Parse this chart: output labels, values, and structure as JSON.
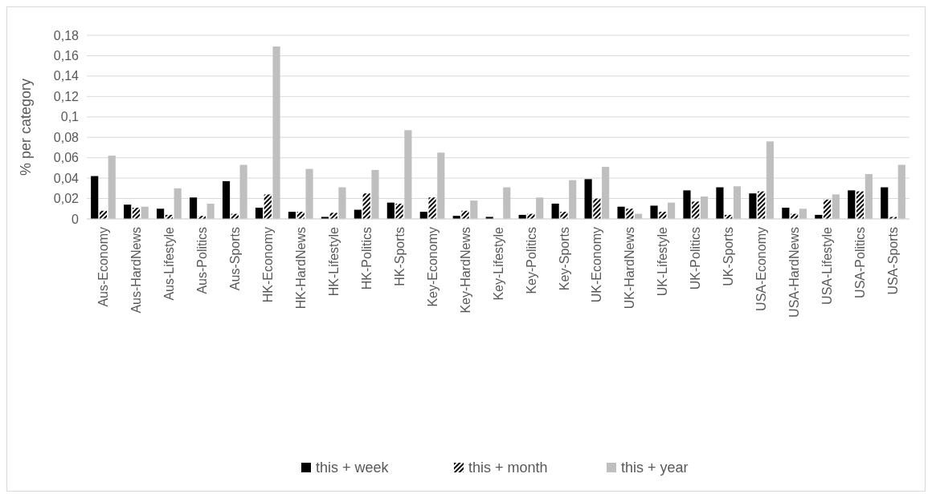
{
  "chart_data": {
    "type": "bar",
    "ylabel": "% per category",
    "categories": [
      "Aus-Economy",
      "Aus-HardNews",
      "Aus-Lifestyle",
      "Aus-Politics",
      "Aus-Sports",
      "HK-Economy",
      "HK-HardNews",
      "HK-Lifestyle",
      "HK-Politics",
      "HK-Sports",
      "Key-Economy",
      "Key-HardNews",
      "Key-Lifestyle",
      "Key-Politics",
      "Key-Sports",
      "UK-Economy",
      "UK-HardNews",
      "UK-Lifestyle",
      "UK-Politics",
      "UK-Sports",
      "USA-Economy",
      "USA-HardNews",
      "USA-Lifestyle",
      "USA-Politics",
      "USA-Sports"
    ],
    "series": [
      {
        "name": "this + week",
        "color": "#000000",
        "values": [
          0.042,
          0.014,
          0.01,
          0.021,
          0.037,
          0.011,
          0.007,
          0.002,
          0.009,
          0.016,
          0.007,
          0.003,
          0.002,
          0.004,
          0.015,
          0.039,
          0.012,
          0.013,
          0.028,
          0.031,
          0.025,
          0.011,
          0.004,
          0.028,
          0.031
        ]
      },
      {
        "name": "this + month",
        "color": "#000000",
        "values": [
          0.008,
          0.011,
          0.004,
          0.003,
          0.005,
          0.024,
          0.007,
          0.006,
          0.025,
          0.015,
          0.021,
          0.008,
          0,
          0.005,
          0.007,
          0.02,
          0.01,
          0.007,
          0.017,
          0.004,
          0.027,
          0.005,
          0.019,
          0.027,
          0.002
        ]
      },
      {
        "name": "this + year",
        "color": "#bfbfbf",
        "values": [
          0.062,
          0.012,
          0.03,
          0.015,
          0.053,
          0.169,
          0.049,
          0.031,
          0.048,
          0.087,
          0.065,
          0.018,
          0.031,
          0.021,
          0.038,
          0.051,
          0.005,
          0.016,
          0.022,
          0.032,
          0.076,
          0.01,
          0.024,
          0.044,
          0.053
        ]
      }
    ],
    "ylim": [
      0,
      0.18
    ],
    "yticks": [
      0,
      {
        "value": 0.02,
        "label": "0,02"
      },
      {
        "value": 0.04,
        "label": "0,04"
      },
      {
        "value": 0.06,
        "label": "0,06"
      },
      {
        "value": 0.08,
        "label": "0,08"
      },
      {
        "value": 0.1,
        "label": "0,1"
      },
      {
        "value": 0.12,
        "label": "0,12"
      },
      {
        "value": 0.14,
        "label": "0,14"
      },
      {
        "value": 0.16,
        "label": "0,16"
      },
      {
        "value": 0.18,
        "label": "0,18"
      }
    ],
    "grid": "y",
    "legend": "bottom"
  }
}
